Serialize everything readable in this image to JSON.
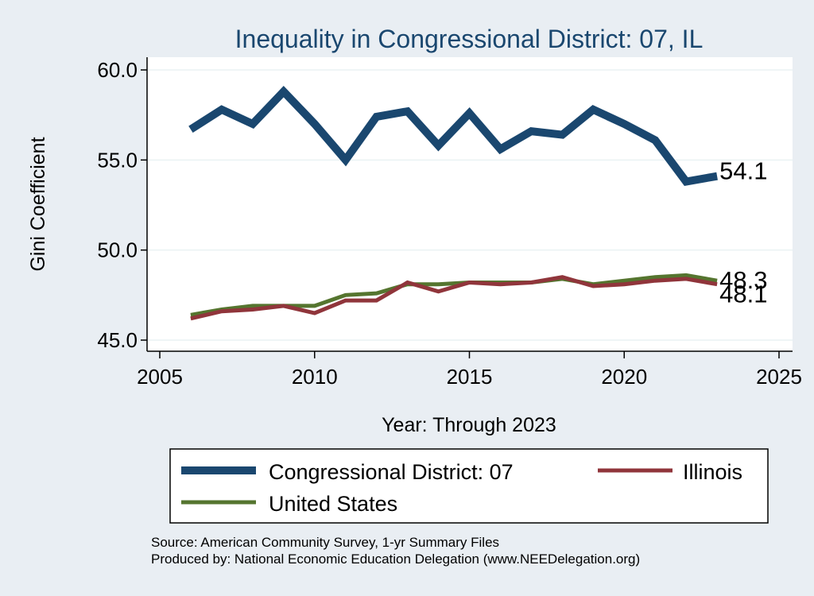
{
  "chart_data": {
    "type": "line",
    "title": "Inequality in Congressional District:  07, IL",
    "xlabel": "Year: Through 2023",
    "ylabel": "Gini Coefficient",
    "xlim": [
      2005,
      2025
    ],
    "ylim": [
      45,
      60
    ],
    "xticks": [
      2005,
      2010,
      2015,
      2020,
      2025
    ],
    "yticks": [
      45,
      50,
      55,
      60
    ],
    "ytick_labels": [
      "45.0",
      "50.0",
      "55.0",
      "60.0"
    ],
    "x": [
      2006,
      2007,
      2008,
      2009,
      2010,
      2011,
      2012,
      2013,
      2014,
      2015,
      2016,
      2017,
      2018,
      2019,
      2020,
      2021,
      2022,
      2023
    ],
    "series": [
      {
        "name": "Congressional District:  07",
        "color": "#1a476f",
        "values": [
          56.7,
          57.8,
          57.0,
          58.8,
          57.0,
          55.0,
          57.4,
          57.7,
          55.8,
          57.6,
          55.6,
          56.6,
          56.4,
          57.8,
          57.0,
          56.1,
          53.8,
          54.1
        ],
        "end_label": "54.1"
      },
      {
        "name": "Illinois",
        "color": "#90353b",
        "values": [
          46.2,
          46.6,
          46.7,
          46.9,
          46.5,
          47.2,
          47.2,
          48.2,
          47.7,
          48.2,
          48.1,
          48.2,
          48.5,
          48.0,
          48.1,
          48.3,
          48.4,
          48.1
        ],
        "end_label": "48.1"
      },
      {
        "name": "United States",
        "color": "#55752f",
        "values": [
          46.4,
          46.7,
          46.9,
          46.9,
          46.9,
          47.5,
          47.6,
          48.1,
          48.1,
          48.2,
          48.2,
          48.2,
          48.4,
          48.1,
          48.3,
          48.5,
          48.6,
          48.3
        ],
        "end_label": "48.3"
      }
    ],
    "legend": {
      "placement": "bottom",
      "order": [
        "Congressional District:  07",
        "Illinois",
        "United States"
      ]
    },
    "grid": true
  },
  "footer": {
    "source": "Source: American Community Survey, 1-yr Summary Files",
    "produced_by": "Produced by: National Economic Education Delegation (www.NEEDelegation.org)"
  },
  "colors": {
    "page_background": "#e9eef3",
    "plot_background": "#ffffff",
    "title_color": "#1a476f",
    "grid_color": "#eaf2f3"
  }
}
